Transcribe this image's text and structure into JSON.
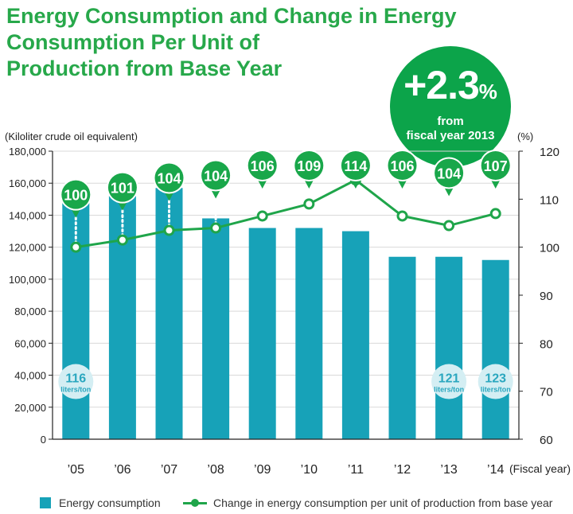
{
  "title": {
    "line1": "Energy Consumption and Change in Energy",
    "line2": "Consumption Per Unit of",
    "line3": "Production from Base Year"
  },
  "badge": {
    "value": "+2.3",
    "unit": "%",
    "line1": "from",
    "line2": "fiscal year 2013"
  },
  "legend": {
    "bar": "Energy consumption",
    "line": "Change in energy consumption per unit of production from base year"
  },
  "colors": {
    "bar": "#17a2b8",
    "line": "#1fa54a",
    "marker": "#19a74a",
    "bubble": "#d4eef3",
    "bubble_text": "#2aa7bf",
    "axis": "#222222",
    "grid": "#d9d9d9"
  },
  "chart_data": {
    "type": "bar",
    "categories": [
      "’05",
      "’06",
      "’07",
      "’08",
      "’09",
      "’10",
      "’11",
      "’12",
      "’13",
      "’14"
    ],
    "x_unit": "(Fiscal year)",
    "ylabel": "(Kiloliter crude oil equivalent)",
    "y2label": "(%)",
    "ylim": [
      0,
      180000
    ],
    "y_ticks": [
      0,
      20000,
      40000,
      60000,
      80000,
      100000,
      120000,
      140000,
      160000,
      180000
    ],
    "y_tick_labels": [
      "0",
      "20,000",
      "40,000",
      "60,000",
      "80,000",
      "100,000",
      "120,000",
      "140,000",
      "160,000",
      "180,000"
    ],
    "y2lim": [
      60,
      120
    ],
    "y2_ticks": [
      60,
      70,
      80,
      90,
      100,
      110,
      120
    ],
    "y2_tick_labels": [
      "60",
      "70",
      "80",
      "90",
      "100",
      "110",
      "120"
    ],
    "grid": true,
    "series": [
      {
        "name": "Energy consumption",
        "type": "bar",
        "axis": "left",
        "values": [
          156000,
          157000,
          157000,
          138000,
          132000,
          132000,
          130000,
          114000,
          114000,
          112000
        ]
      },
      {
        "name": "Change in energy consumption per unit of production from base year",
        "type": "line",
        "axis": "right",
        "values": [
          100,
          101.5,
          103.5,
          104,
          106.5,
          109,
          114,
          106.5,
          104.5,
          107
        ],
        "labels": [
          "100",
          "101",
          "104",
          "104",
          "106",
          "109",
          "114",
          "106",
          "104",
          "107"
        ]
      }
    ],
    "annotations": [
      {
        "category": "’05",
        "value": "116",
        "unit": "liters/ton",
        "y": 40000
      },
      {
        "category": "’13",
        "value": "121",
        "unit": "liters/ton",
        "y": 40000
      },
      {
        "category": "’14",
        "value": "123",
        "unit": "liters/ton",
        "y": 40000
      }
    ]
  }
}
